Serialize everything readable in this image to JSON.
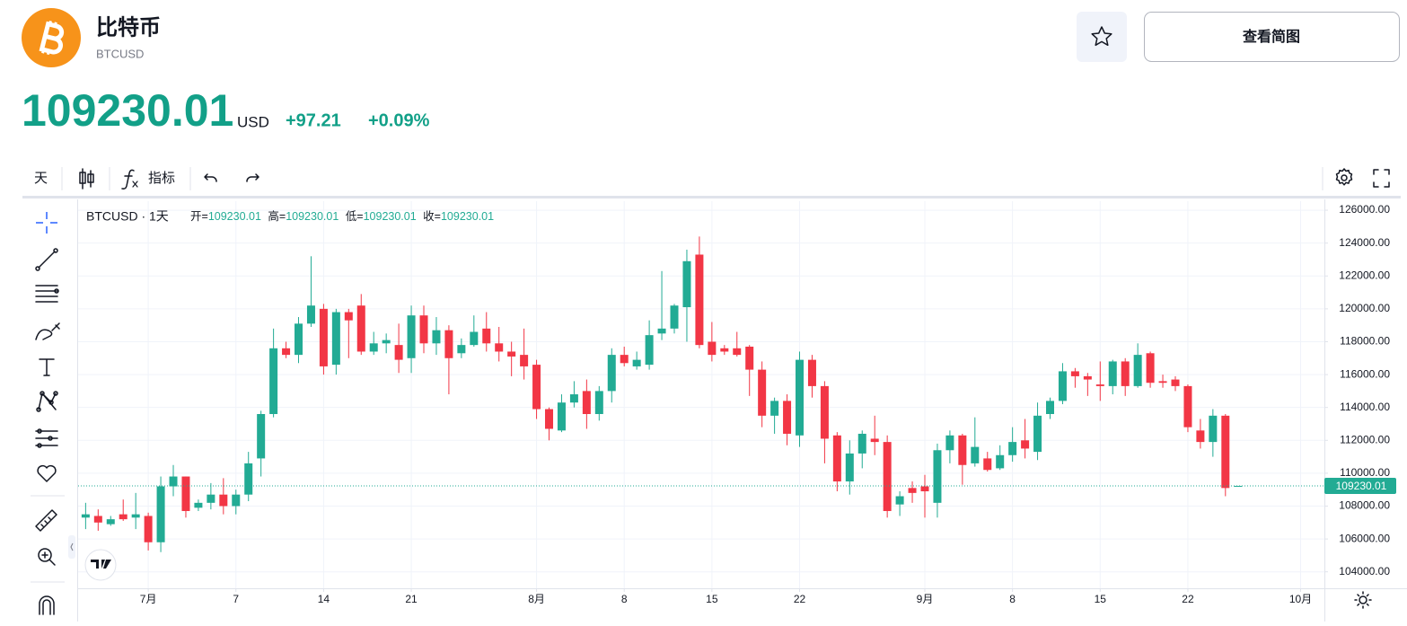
{
  "header": {
    "name": "比特币",
    "symbol": "BTCUSD",
    "price": "109230.01",
    "currency": "USD",
    "change": "+97.21",
    "change_pct": "+0.09%"
  },
  "buttons": {
    "overview": "查看简图"
  },
  "toolbar": {
    "interval": "天",
    "indicators": "指标"
  },
  "chart_data": {
    "type": "candlestick",
    "legend": "BTCUSD · 1天",
    "ohlc_labels": [
      "开=",
      "高=",
      "低=",
      "收="
    ],
    "up_color": "#22ab94",
    "down_color": "#f23645",
    "x": [
      -5,
      -4,
      -3,
      -2,
      -1,
      0,
      1,
      2,
      3,
      4,
      5,
      6,
      7,
      8,
      9,
      10,
      11,
      12,
      13,
      14,
      15,
      16,
      17,
      18,
      19,
      20,
      21,
      22,
      23,
      24,
      25,
      26,
      27,
      28,
      29,
      30,
      31,
      32,
      33,
      34,
      35,
      36,
      37,
      38,
      39,
      40,
      41,
      42,
      43,
      44,
      45,
      46,
      47,
      48,
      49,
      50,
      51,
      52,
      53,
      54,
      55,
      56,
      57,
      58,
      59,
      60,
      61,
      62,
      63,
      64,
      65,
      66,
      67,
      68,
      69,
      70,
      71,
      72,
      73,
      74,
      75,
      76,
      77,
      78,
      79,
      80,
      81,
      82,
      83,
      84,
      85,
      86,
      87
    ],
    "open": [
      107300,
      107400,
      106900,
      107500,
      107300,
      107400,
      105800,
      109200,
      109800,
      107900,
      108200,
      108700,
      108000,
      108700,
      110900,
      113600,
      117600,
      117200,
      119100,
      120000,
      116600,
      119800,
      120200,
      117400,
      117900,
      117800,
      117000,
      119600,
      117900,
      118700,
      117300,
      117800,
      118800,
      117900,
      117400,
      117200,
      116600,
      113900,
      112600,
      114300,
      115000,
      113600,
      115000,
      117200,
      116500,
      116600,
      118500,
      118800,
      120100,
      123300,
      118000,
      117600,
      117600,
      117700,
      116300,
      113500,
      114400,
      112300,
      116900,
      115300,
      112300,
      109500,
      111200,
      112100,
      111900,
      108100,
      109100,
      109200,
      108200,
      111400,
      112300,
      110600,
      110900,
      110300,
      111100,
      112000,
      111300,
      113600,
      114400,
      116200,
      115900,
      115400,
      115300,
      116800,
      115300,
      117300,
      115600,
      115700,
      115300,
      112600,
      111900,
      113500,
      109230.01
    ],
    "high": [
      108200,
      107800,
      107400,
      108400,
      108800,
      107600,
      109800,
      110500,
      109800,
      108400,
      109400,
      109700,
      109000,
      111300,
      113800,
      118800,
      118000,
      119500,
      123200,
      120300,
      120000,
      120000,
      120900,
      118600,
      118500,
      119100,
      120200,
      120200,
      119500,
      119000,
      118200,
      119600,
      119800,
      118900,
      118000,
      118800,
      116900,
      114000,
      114800,
      115600,
      115700,
      115300,
      117600,
      117700,
      117400,
      119300,
      122300,
      120300,
      123600,
      124400,
      119200,
      117800,
      118600,
      117800,
      116800,
      114600,
      114800,
      117400,
      117200,
      115600,
      112500,
      112000,
      112600,
      113500,
      112300,
      108900,
      109500,
      109900,
      111800,
      112600,
      112400,
      113400,
      111300,
      111700,
      112800,
      113300,
      114300,
      114600,
      116700,
      116400,
      116100,
      116800,
      116900,
      117000,
      117900,
      117400,
      116000,
      115900,
      115400,
      113300,
      113900,
      113600,
      109230.01
    ],
    "low": [
      106600,
      106500,
      106800,
      107100,
      106600,
      105300,
      105200,
      108600,
      107300,
      107700,
      107800,
      107500,
      107500,
      108300,
      109800,
      113400,
      117000,
      116700,
      118900,
      116000,
      116000,
      117000,
      117200,
      117200,
      117300,
      116100,
      116100,
      117300,
      117200,
      114800,
      117000,
      117700,
      117400,
      116800,
      115900,
      115700,
      113300,
      112000,
      112500,
      114000,
      112700,
      113200,
      114300,
      116500,
      116300,
      116300,
      118100,
      118500,
      118000,
      117600,
      116800,
      117200,
      117100,
      114700,
      112800,
      112400,
      111700,
      111600,
      114600,
      110600,
      108900,
      108700,
      110300,
      111100,
      107300,
      107400,
      108200,
      107300,
      107300,
      110600,
      109300,
      110400,
      110100,
      110200,
      110700,
      110900,
      110800,
      113300,
      114200,
      115200,
      114700,
      114400,
      114800,
      114700,
      115200,
      115200,
      115200,
      115000,
      112500,
      111500,
      111000,
      108600,
      109230.01
    ],
    "close": [
      107500,
      107000,
      107200,
      107200,
      107500,
      105800,
      109200,
      109800,
      107700,
      108200,
      108700,
      108000,
      108700,
      110600,
      113600,
      117600,
      117200,
      119100,
      120200,
      116500,
      119800,
      119300,
      117400,
      117900,
      118100,
      116900,
      119600,
      117900,
      118700,
      117000,
      117800,
      118600,
      117900,
      117400,
      117100,
      116500,
      113900,
      112700,
      114300,
      114800,
      113600,
      115000,
      117200,
      116700,
      116900,
      118400,
      118800,
      120200,
      122900,
      117800,
      117200,
      117400,
      117200,
      116300,
      113500,
      114400,
      112400,
      116900,
      115300,
      112100,
      109500,
      111200,
      112400,
      111900,
      107700,
      108600,
      108800,
      108900,
      111400,
      112300,
      110500,
      111600,
      110200,
      111100,
      111900,
      111500,
      113500,
      114400,
      116200,
      115900,
      115700,
      115300,
      116800,
      115300,
      117200,
      115500,
      115500,
      115300,
      112800,
      111900,
      113500,
      109100,
      109230.01
    ],
    "xlim": [
      -5.6,
      93.9
    ],
    "xticks": [
      {
        "value": 0,
        "label": "7月"
      },
      7,
      14,
      21,
      {
        "value": 31,
        "label": "8月"
      },
      {
        "value": 38,
        "label": "8"
      },
      {
        "value": 45,
        "label": "15"
      },
      {
        "value": 52,
        "label": "22"
      },
      {
        "value": 62,
        "label": "9月"
      },
      {
        "value": 69,
        "label": "8"
      },
      {
        "value": 76,
        "label": "15"
      },
      {
        "value": 83,
        "label": "22"
      },
      {
        "value": 92,
        "label": "10月"
      }
    ],
    "ylim": [
      103000,
      126550
    ],
    "yticks": [
      {
        "value": 104000,
        "label": "104000.00"
      },
      {
        "value": 106000,
        "label": "106000.00"
      },
      {
        "value": 108000,
        "label": "108000.00"
      },
      {
        "value": 110000,
        "label": "110000.00"
      },
      {
        "value": 112000,
        "label": "112000.00"
      },
      {
        "value": 114000,
        "label": "114000.00"
      },
      {
        "value": 116000,
        "label": "116000.00"
      },
      {
        "value": 118000,
        "label": "118000.00"
      },
      {
        "value": 120000,
        "label": "120000.00"
      },
      {
        "value": 122000,
        "label": "122000.00"
      },
      {
        "value": 124000,
        "label": "124000.00"
      },
      {
        "value": 126000,
        "label": "126000.00"
      }
    ],
    "grid": true
  }
}
